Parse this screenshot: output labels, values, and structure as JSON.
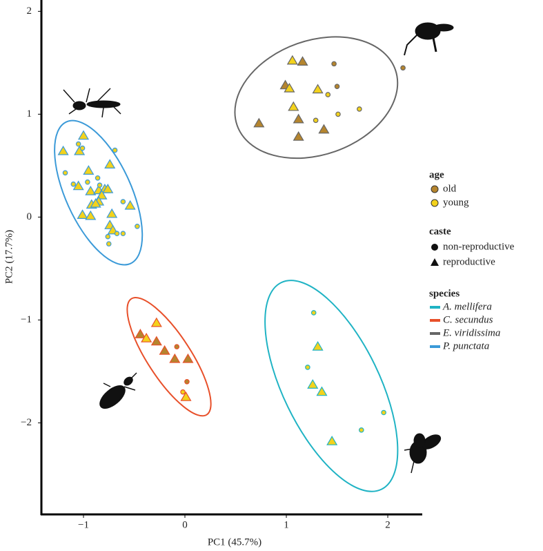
{
  "chart_data": {
    "type": "scatter",
    "x_label": "PC1 (45.7%)",
    "y_label": "PC2 (17.7%)",
    "xlim": [
      -1.415,
      2.34
    ],
    "ylim": [
      -2.89,
      2.11
    ],
    "xticks": [
      {
        "value": -1,
        "label": "−1"
      },
      0,
      1,
      2
    ],
    "yticks": [
      {
        "value": -2,
        "label": "−2"
      },
      {
        "value": -1,
        "label": "−1"
      },
      0,
      1,
      2
    ],
    "legend": {
      "age": {
        "title": "age",
        "items": [
          {
            "label": "old",
            "color": "#b5852e"
          },
          {
            "label": "young",
            "color": "#f3d21c"
          }
        ]
      },
      "caste": {
        "title": "caste",
        "items": [
          {
            "label": "non-reproductive",
            "marker": "circle"
          },
          {
            "label": "reproductive",
            "marker": "triangle"
          }
        ]
      },
      "species": {
        "title": "species"
      }
    },
    "series": [
      {
        "name": "A. mellifera",
        "color": "#1fb3c4",
        "x": [
          1.31,
          1.26,
          1.35,
          1.45,
          1.27,
          1.21,
          1.74,
          1.96
        ],
        "y": [
          -1.26,
          -1.63,
          -1.7,
          -2.18,
          -0.93,
          -1.46,
          -2.07,
          -1.9
        ],
        "age": [
          "young",
          "young",
          "young",
          "young",
          "young",
          "young",
          "young",
          "young"
        ],
        "caste": [
          "reproductive",
          "reproductive",
          "reproductive",
          "reproductive",
          "non-reproductive",
          "non-reproductive",
          "non-reproductive",
          "non-reproductive"
        ]
      },
      {
        "name": "C. secundus",
        "color": "#e8502a",
        "x": [
          -0.28,
          -0.44,
          -0.38,
          -0.28,
          -0.2,
          -0.1,
          0.03,
          0.01,
          -0.08,
          0.02,
          -0.02
        ],
        "y": [
          -1.03,
          -1.14,
          -1.18,
          -1.21,
          -1.3,
          -1.38,
          -1.38,
          -1.75,
          -1.26,
          -1.6,
          -1.7
        ],
        "age": [
          "young",
          "old",
          "young",
          "old",
          "old",
          "old",
          "old",
          "young",
          "old",
          "old",
          "young"
        ],
        "caste": [
          "reproductive",
          "reproductive",
          "reproductive",
          "reproductive",
          "reproductive",
          "reproductive",
          "reproductive",
          "reproductive",
          "non-reproductive",
          "non-reproductive",
          "non-reproductive"
        ]
      },
      {
        "name": "E. viridissima",
        "color": "#666666",
        "x": [
          1.06,
          1.16,
          0.99,
          1.03,
          1.31,
          1.07,
          1.12,
          0.73,
          1.12,
          1.37,
          1.47,
          1.5,
          1.41,
          1.51,
          1.72,
          1.29,
          2.15
        ],
        "y": [
          1.52,
          1.51,
          1.28,
          1.25,
          1.24,
          1.07,
          0.95,
          0.91,
          0.78,
          0.85,
          1.49,
          1.27,
          1.19,
          1.0,
          1.05,
          0.94,
          1.45
        ],
        "age": [
          "young",
          "old",
          "old",
          "young",
          "young",
          "young",
          "old",
          "old",
          "old",
          "old",
          "old",
          "old",
          "young",
          "young",
          "young",
          "young",
          "old"
        ],
        "caste": [
          "reproductive",
          "reproductive",
          "reproductive",
          "reproductive",
          "reproductive",
          "reproductive",
          "reproductive",
          "reproductive",
          "reproductive",
          "reproductive",
          "non-reproductive",
          "non-reproductive",
          "non-reproductive",
          "non-reproductive",
          "non-reproductive",
          "non-reproductive",
          "non-reproductive"
        ]
      },
      {
        "name": "P. punctata",
        "color": "#3b9ad8",
        "x": [
          -1.2,
          -1.0,
          -1.04,
          -0.95,
          -0.74,
          -1.05,
          -0.93,
          -0.85,
          -0.79,
          -0.76,
          -0.82,
          -0.85,
          -0.92,
          -0.88,
          -0.54,
          -1.01,
          -0.93,
          -0.72,
          -0.74,
          -0.71,
          -1.05,
          -1.01,
          -1.18,
          -1.1,
          -0.96,
          -0.86,
          -0.69,
          -0.84,
          -0.61,
          -0.47,
          -0.67,
          -0.61,
          -0.76,
          -0.75
        ],
        "y": [
          0.64,
          0.79,
          0.64,
          0.45,
          0.51,
          0.3,
          0.25,
          0.26,
          0.27,
          0.27,
          0.21,
          0.15,
          0.12,
          0.13,
          0.11,
          0.02,
          0.01,
          0.03,
          -0.08,
          -0.13,
          0.71,
          0.67,
          0.43,
          0.32,
          0.34,
          0.38,
          0.65,
          0.31,
          0.15,
          -0.09,
          -0.16,
          -0.16,
          -0.19,
          -0.26
        ],
        "age": [
          "young",
          "young",
          "young",
          "young",
          "young",
          "young",
          "young",
          "young",
          "young",
          "young",
          "young",
          "young",
          "young",
          "young",
          "young",
          "young",
          "young",
          "young",
          "young",
          "young",
          "young",
          "young",
          "young",
          "young",
          "young",
          "young",
          "young",
          "young",
          "young",
          "young",
          "young",
          "young",
          "young",
          "young"
        ],
        "caste": [
          "reproductive",
          "reproductive",
          "reproductive",
          "reproductive",
          "reproductive",
          "reproductive",
          "reproductive",
          "reproductive",
          "reproductive",
          "reproductive",
          "reproductive",
          "reproductive",
          "reproductive",
          "reproductive",
          "reproductive",
          "reproductive",
          "reproductive",
          "reproductive",
          "reproductive",
          "reproductive",
          "non-reproductive",
          "non-reproductive",
          "non-reproductive",
          "non-reproductive",
          "non-reproductive",
          "non-reproductive",
          "non-reproductive",
          "non-reproductive",
          "non-reproductive",
          "non-reproductive",
          "non-reproductive",
          "non-reproductive",
          "non-reproductive",
          "non-reproductive"
        ]
      }
    ]
  }
}
